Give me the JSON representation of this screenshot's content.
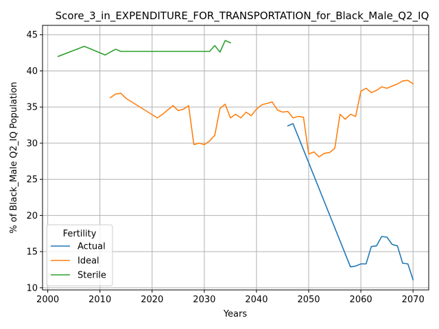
{
  "chart_data": {
    "type": "line",
    "title": "Score_3_in_EXPENDITURE_FOR_TRANSPORTATION_for_Black_Male_Q2_IQ",
    "xlabel": "Years",
    "ylabel": "% of Black_Male Q2_IQ Population",
    "xlim": [
      1999,
      2073
    ],
    "ylim": [
      9.7,
      46.3
    ],
    "xticks": [
      2000,
      2010,
      2020,
      2030,
      2040,
      2050,
      2060,
      2070
    ],
    "yticks": [
      10,
      15,
      20,
      25,
      30,
      35,
      40,
      45
    ],
    "grid": true,
    "legend": {
      "title": "Fertility",
      "placement": "lower-left"
    },
    "series": [
      {
        "name": "Actual",
        "color": "#1f77b4",
        "x": [
          2046,
          2047,
          2058,
          2059,
          2060,
          2061,
          2062,
          2063,
          2064,
          2065,
          2066,
          2067,
          2068,
          2069,
          2070
        ],
        "y": [
          32.4,
          32.7,
          12.9,
          13.0,
          13.3,
          13.3,
          15.7,
          15.8,
          17.1,
          17.0,
          16.0,
          15.8,
          13.4,
          13.3,
          11.1
        ]
      },
      {
        "name": "Ideal",
        "color": "#ff7f0e",
        "x": [
          2012,
          2013,
          2014,
          2015,
          2021,
          2022,
          2023,
          2024,
          2025,
          2026,
          2027,
          2028,
          2029,
          2030,
          2031,
          2032,
          2033,
          2034,
          2035,
          2036,
          2037,
          2038,
          2039,
          2040,
          2041,
          2042,
          2043,
          2044,
          2045,
          2046,
          2047,
          2048,
          2049,
          2050,
          2051,
          2052,
          2053,
          2054,
          2055,
          2056,
          2057,
          2058,
          2059,
          2060,
          2061,
          2062,
          2063,
          2064,
          2065,
          2066,
          2067,
          2068,
          2069,
          2070
        ],
        "y": [
          36.3,
          36.8,
          36.9,
          36.2,
          33.5,
          34.0,
          34.6,
          35.2,
          34.5,
          34.7,
          35.2,
          29.8,
          30.0,
          29.8,
          30.3,
          31.1,
          34.8,
          35.4,
          33.5,
          34.0,
          33.5,
          34.3,
          33.8,
          34.7,
          35.3,
          35.5,
          35.7,
          34.6,
          34.3,
          34.4,
          33.5,
          33.7,
          33.6,
          28.5,
          28.8,
          28.1,
          28.6,
          28.7,
          29.3,
          34.0,
          33.3,
          34.0,
          33.7,
          37.2,
          37.6,
          37.0,
          37.3,
          37.8,
          37.6,
          37.9,
          38.2,
          38.6,
          38.7,
          38.2
        ]
      },
      {
        "name": "Sterile",
        "color": "#2ca02c",
        "x": [
          2002,
          2007,
          2011,
          2013,
          2014,
          2031,
          2032,
          2033,
          2034,
          2035
        ],
        "y": [
          42.0,
          43.4,
          42.2,
          43.0,
          42.7,
          42.7,
          43.5,
          42.6,
          44.2,
          43.9
        ]
      }
    ]
  }
}
